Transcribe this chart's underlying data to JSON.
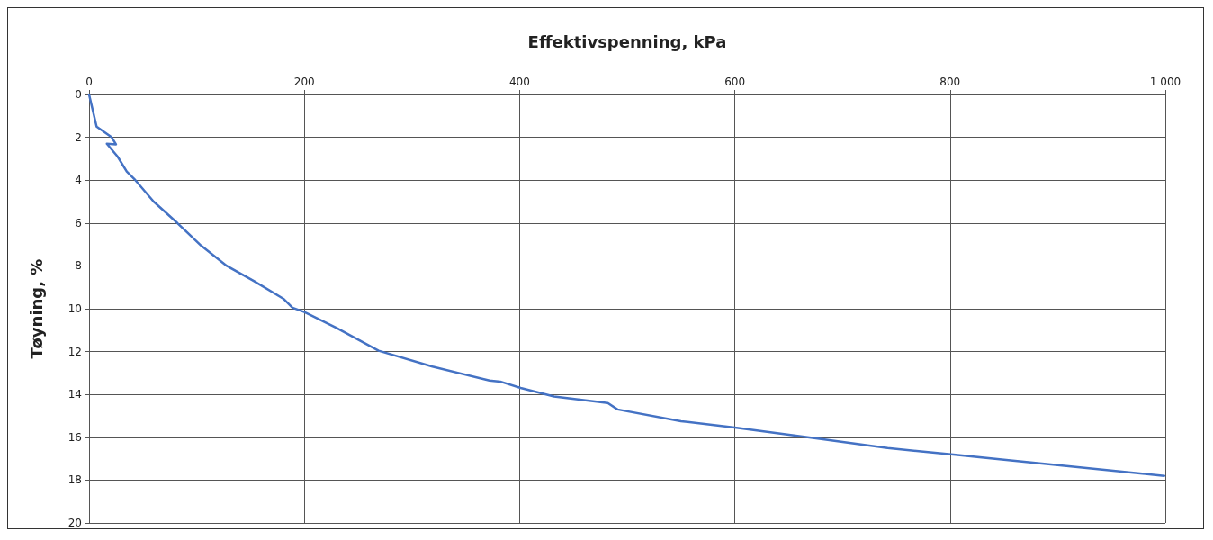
{
  "chart_data": {
    "type": "line",
    "xlabel": "Effektivspenning, kPa",
    "ylabel": "Tøyning, %",
    "xlim": [
      0,
      1000
    ],
    "xticks": [
      0,
      200,
      400,
      600,
      800,
      {
        "value": 1000,
        "label": "1 000"
      }
    ],
    "ylim": [
      20,
      0
    ],
    "yticks": [
      0,
      2,
      4,
      6,
      8,
      10,
      12,
      14,
      16,
      18,
      20
    ],
    "grid": true,
    "marker": "none",
    "line_style": "solid",
    "series": [
      {
        "color": "#4472c4",
        "x": [
          0,
          7,
          21,
          25,
          16.5,
          26.5,
          35,
          43,
          60,
          82,
          104,
          128,
          153,
          181,
          189,
          200,
          230,
          269,
          319,
          372,
          382,
          401,
          432,
          482,
          491,
          550,
          600,
          674,
          742,
          801,
          900,
          999
        ],
        "values": [
          0,
          1.5,
          2.0,
          2.33,
          2.3,
          2.9,
          3.6,
          4.0,
          5.0,
          6.0,
          7.05,
          8.0,
          8.7,
          9.55,
          9.95,
          10.15,
          10.9,
          11.96,
          12.7,
          13.35,
          13.4,
          13.7,
          14.1,
          14.4,
          14.7,
          15.25,
          15.55,
          16.04,
          16.5,
          16.8,
          17.3,
          17.8
        ]
      }
    ]
  }
}
